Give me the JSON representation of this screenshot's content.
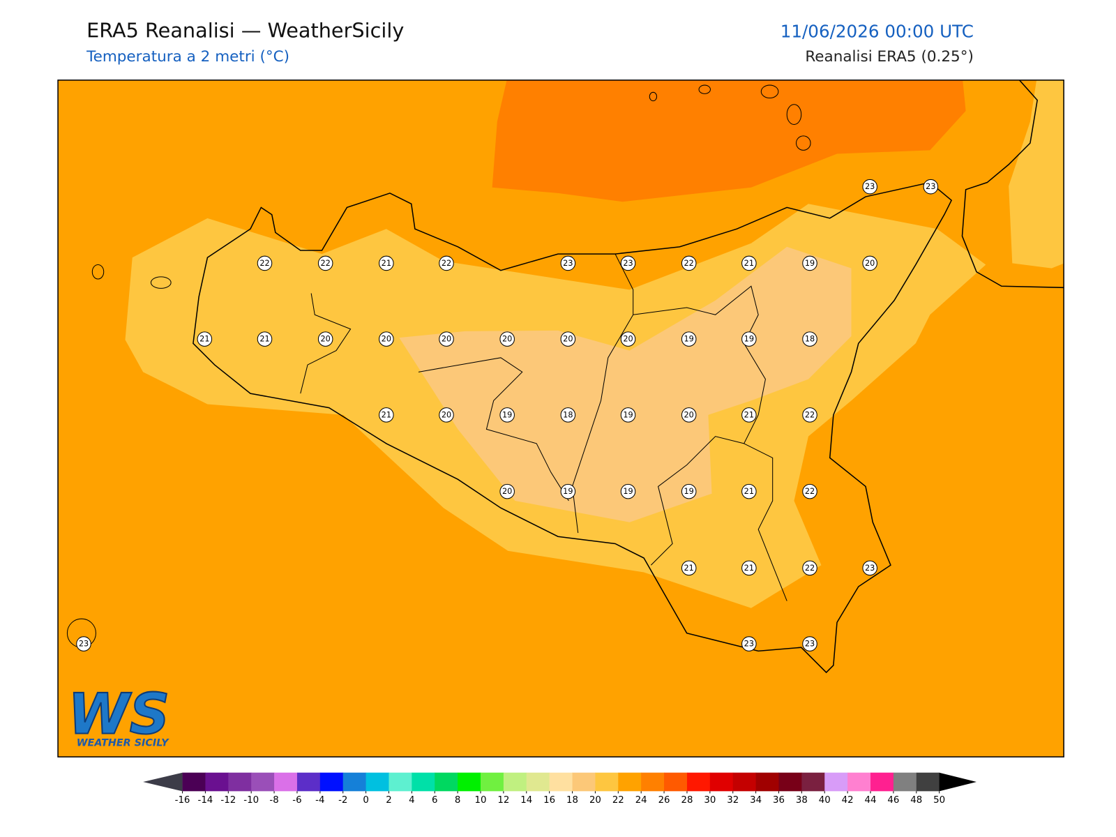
{
  "header": {
    "title": "ERA5 Reanalisi — WeatherSicily",
    "subtitle": "Temperatura a 2 metri (°C)",
    "datetime": "11/06/2026 00:00 UTC",
    "source": "Reanalisi ERA5 (0.25°)"
  },
  "map": {
    "station_values": [
      23,
      23,
      22,
      22,
      21,
      22,
      23,
      23,
      22,
      21,
      19,
      20,
      21,
      21,
      20,
      20,
      20,
      20,
      20,
      20,
      19,
      19,
      18,
      21,
      20,
      19,
      18,
      19,
      20,
      21,
      22,
      20,
      19,
      19,
      19,
      21,
      22,
      21,
      21,
      22,
      23,
      23,
      23,
      23
    ]
  },
  "colorbar": {
    "ticks": [
      -16,
      -14,
      -12,
      -10,
      -8,
      -6,
      -4,
      -2,
      0,
      2,
      4,
      6,
      8,
      10,
      12,
      14,
      16,
      18,
      20,
      22,
      24,
      26,
      28,
      30,
      32,
      34,
      36,
      38,
      40,
      42,
      44,
      46,
      48,
      50
    ],
    "colors": [
      "#4b0055",
      "#6a1090",
      "#7f2fa0",
      "#9a4fb8",
      "#da70e8",
      "#5c2ec8",
      "#0010ff",
      "#1580d8",
      "#00c0e0",
      "#5ef0d0",
      "#00e0a8",
      "#00d860",
      "#00f000",
      "#70f040",
      "#c0f080",
      "#e0e890",
      "#ffe0a0",
      "#fcc878",
      "#fec640",
      "#ffa200",
      "#ff8000",
      "#ff5a00",
      "#ff1800",
      "#e00000",
      "#c40000",
      "#a00000",
      "#780018",
      "#7a2040",
      "#d89cf8",
      "#ff80d0",
      "#ff2090",
      "#808080",
      "#404040"
    ],
    "under_color": "#3c3c48",
    "over_color": "#000000"
  },
  "logo": {
    "mark": "WS",
    "text": "WEATHER SICILY"
  }
}
